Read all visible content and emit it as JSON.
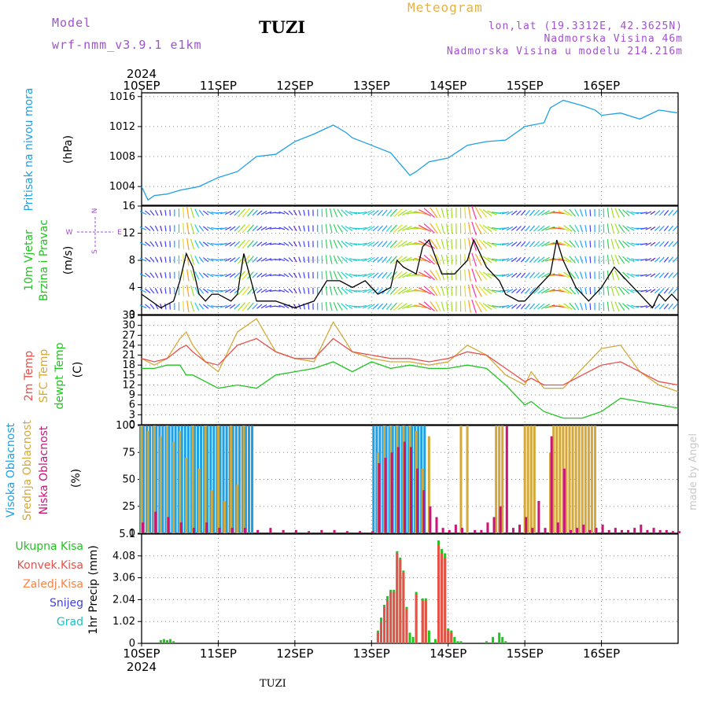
{
  "header": {
    "model_label": "Model",
    "model_name": "wrf-nmm_v3.9.1 e1km",
    "station": "TUZI",
    "meteogram": "Meteogram",
    "lonlat": "lon,lat (19.3312E, 42.3625N)",
    "elev": "Nadmorska Visina 46m",
    "elev_model": "Nadmorska Visina u modelu 214.216m",
    "footer_station": "TUZI",
    "credit": "made by Angel"
  },
  "colors": {
    "pressure": "#1ea0e6",
    "temp": "#e8504a",
    "sfc": "#d4a83a",
    "dewpt": "#22c422",
    "cloud_high": "#1ea0e6",
    "cloud_mid": "#d4a83a",
    "cloud_low": "#c8167a",
    "precip_total": "#22c422",
    "precip_conv": "#e8504a",
    "precip_frz": "#ff8040",
    "snow": "#4040e0",
    "hail": "#20c0c0",
    "title_purple": "#a050d0",
    "title_orange": "#e8b040"
  },
  "time_axis": {
    "year": "2024",
    "days": [
      "10SEP",
      "11SEP",
      "12SEP",
      "13SEP",
      "14SEP",
      "15SEP",
      "16SEP"
    ]
  },
  "panels": {
    "pressure": {
      "labels": [
        "Pritisak na nivou mora"
      ],
      "unit": "(hPa)",
      "ticks": [
        "1004",
        "1008",
        "1012",
        "1016"
      ]
    },
    "wind": {
      "labels": [
        "10m Vjetar",
        "Brzina i Pravac"
      ],
      "unit": "(m/s)",
      "ticks": [
        "0",
        "4",
        "8",
        "12",
        "16"
      ],
      "compass": {
        "n": "N",
        "s": "S",
        "e": "E",
        "w": "W"
      }
    },
    "temp": {
      "labels": [
        "2m Temp",
        "SFC Temp",
        "dewpt Temp"
      ],
      "unit": "(C)",
      "ticks": [
        "0",
        "3",
        "6",
        "9",
        "12",
        "15",
        "18",
        "21",
        "24",
        "27",
        "30",
        "33"
      ]
    },
    "cloud": {
      "labels": [
        "Visoka Oblacnost",
        "Srednja Oblacnost",
        "Niska Oblacnost"
      ],
      "unit": "(%)",
      "ticks": [
        "0",
        "25",
        "50",
        "75",
        "100"
      ]
    },
    "precip": {
      "legend": [
        "Ukupna Kisa",
        "Konvek.Kisa",
        "Zaledj.Kisa",
        "Snijeg",
        "Grad"
      ],
      "ylabel": "1hr Precip (mm)",
      "ticks": [
        "0",
        "1.02",
        "2.04",
        "3.06",
        "4.08",
        "5.1"
      ]
    }
  },
  "chart_data": [
    {
      "type": "line",
      "title": "Pritisak na nivou mora",
      "ylabel": "(hPa)",
      "x_unit": "hours since 10SEP 00",
      "ylim": [
        1001.5,
        1016.5
      ],
      "series": [
        {
          "name": "Pritisak na nivou mora",
          "x": [
            0,
            2,
            4,
            8,
            12,
            18,
            24,
            30,
            36,
            42,
            48,
            54,
            60,
            64,
            66,
            72,
            78,
            84,
            86,
            90,
            96,
            102,
            108,
            114,
            120,
            126,
            128,
            132,
            138,
            142,
            144,
            150,
            156,
            162,
            168
          ],
          "y": [
            1004.0,
            1002.2,
            1002.8,
            1003.0,
            1003.5,
            1004.0,
            1005.2,
            1006.0,
            1008.0,
            1008.3,
            1010.0,
            1011.0,
            1012.2,
            1011.2,
            1010.5,
            1009.5,
            1008.5,
            1005.5,
            1006.0,
            1007.3,
            1007.8,
            1009.5,
            1010.0,
            1010.2,
            1012.0,
            1012.5,
            1014.5,
            1015.5,
            1014.8,
            1014.2,
            1013.5,
            1013.8,
            1013.0,
            1014.2,
            1013.8
          ]
        }
      ]
    },
    {
      "type": "line",
      "title": "10m Vjetar Brzina i Pravac",
      "ylabel": "(m/s)",
      "x_unit": "hours since 10SEP 00",
      "ylim": [
        0,
        16
      ],
      "series": [
        {
          "name": "Brzina",
          "x": [
            0,
            6,
            10,
            12,
            14,
            16,
            18,
            20,
            22,
            24,
            28,
            30,
            32,
            36,
            42,
            48,
            54,
            58,
            62,
            66,
            70,
            72,
            74,
            78,
            80,
            82,
            86,
            88,
            90,
            94,
            98,
            102,
            104,
            106,
            108,
            110,
            112,
            114,
            118,
            120,
            122,
            124,
            126,
            128,
            130,
            132,
            134,
            136,
            138,
            140,
            142,
            144,
            148,
            152,
            156,
            160,
            162,
            164,
            166,
            168
          ],
          "y": [
            3,
            1,
            2,
            5,
            9,
            7,
            3,
            2,
            3,
            3,
            2,
            3,
            9,
            2,
            2,
            1,
            2,
            5,
            5,
            4,
            5,
            4,
            3,
            4,
            8,
            7,
            6,
            10,
            11,
            6,
            6,
            8,
            11,
            9,
            7,
            6,
            5,
            3,
            2,
            2,
            3,
            4,
            5,
            6,
            11,
            8,
            6,
            4,
            3,
            2,
            3,
            4,
            7,
            5,
            3,
            1,
            3,
            2,
            3,
            2
          ]
        }
      ]
    },
    {
      "type": "line",
      "title": "2m Temp / SFC Temp / dewpt Temp",
      "ylabel": "(C)",
      "x_unit": "hours since 10SEP 00",
      "ylim": [
        0,
        33
      ],
      "series": [
        {
          "name": "2m Temp",
          "x": [
            0,
            4,
            8,
            12,
            14,
            16,
            20,
            24,
            30,
            36,
            42,
            48,
            54,
            60,
            66,
            72,
            78,
            84,
            90,
            96,
            102,
            108,
            114,
            120,
            122,
            126,
            132,
            138,
            144,
            150,
            156,
            162,
            168
          ],
          "y": [
            20,
            19,
            20,
            23,
            24,
            22,
            19,
            18,
            24,
            26,
            22,
            20,
            20,
            26,
            22,
            21,
            20,
            20,
            19,
            20,
            22,
            21,
            17,
            13,
            14,
            12,
            12,
            15,
            18,
            19,
            16,
            13,
            12
          ]
        },
        {
          "name": "SFC Temp",
          "x": [
            0,
            4,
            8,
            12,
            14,
            16,
            20,
            24,
            30,
            36,
            42,
            48,
            54,
            60,
            66,
            72,
            78,
            84,
            90,
            96,
            102,
            108,
            114,
            120,
            122,
            126,
            132,
            138,
            144,
            150,
            156,
            162,
            168
          ],
          "y": [
            20,
            18,
            20,
            26,
            28,
            24,
            19,
            16,
            28,
            32,
            22,
            20,
            19,
            31,
            22,
            20,
            19,
            19,
            18,
            19,
            24,
            21,
            15,
            12,
            16,
            11,
            11,
            17,
            23,
            24,
            16,
            12,
            10
          ]
        },
        {
          "name": "dewpt Temp",
          "x": [
            0,
            4,
            8,
            12,
            14,
            16,
            20,
            24,
            30,
            36,
            42,
            48,
            54,
            60,
            66,
            72,
            78,
            84,
            90,
            96,
            102,
            108,
            114,
            120,
            122,
            126,
            132,
            138,
            144,
            150,
            156,
            162,
            168
          ],
          "y": [
            17,
            17,
            18,
            18,
            15,
            15,
            13,
            11,
            12,
            11,
            15,
            16,
            17,
            19,
            16,
            19,
            17,
            18,
            17,
            17,
            18,
            17,
            12,
            6,
            7,
            4,
            2,
            2,
            4,
            8,
            7,
            6,
            5
          ]
        }
      ]
    },
    {
      "type": "bar",
      "title": "Oblacnost",
      "ylabel": "(%)",
      "x_unit": "hours since 10SEP 00",
      "ylim": [
        0,
        100
      ],
      "series": [
        {
          "name": "Visoka Oblacnost",
          "x": [
            0,
            1,
            2,
            3,
            4,
            5,
            6,
            7,
            8,
            9,
            10,
            11,
            12,
            13,
            14,
            15,
            16,
            17,
            18,
            19,
            20,
            21,
            22,
            23,
            24,
            25,
            26,
            27,
            28,
            29,
            30,
            31,
            32,
            33,
            34,
            35,
            73,
            74,
            75,
            76,
            77,
            78,
            79,
            80,
            81,
            82,
            83,
            84,
            85,
            86,
            87,
            88,
            89
          ],
          "y": [
            100,
            100,
            100,
            100,
            100,
            100,
            100,
            100,
            100,
            100,
            100,
            100,
            100,
            100,
            100,
            100,
            100,
            100,
            100,
            100,
            100,
            100,
            100,
            100,
            100,
            100,
            100,
            100,
            100,
            100,
            100,
            100,
            100,
            100,
            100,
            100,
            100,
            100,
            100,
            100,
            100,
            100,
            100,
            100,
            100,
            100,
            100,
            100,
            100,
            100,
            100,
            100,
            100
          ]
        },
        {
          "name": "Srednja Oblacnost",
          "x": [
            0,
            2,
            4,
            6,
            8,
            10,
            12,
            14,
            16,
            18,
            20,
            22,
            24,
            26,
            28,
            30,
            32,
            74,
            76,
            78,
            80,
            82,
            84,
            86,
            88,
            90,
            100,
            102,
            111,
            112,
            113,
            120,
            121,
            122,
            123,
            128,
            129,
            130,
            131,
            132,
            133,
            134,
            135,
            136,
            137,
            138,
            139,
            140,
            141,
            142
          ],
          "y": [
            100,
            95,
            100,
            90,
            100,
            85,
            95,
            70,
            100,
            60,
            100,
            40,
            100,
            30,
            100,
            45,
            100,
            75,
            100,
            100,
            100,
            100,
            100,
            95,
            60,
            90,
            100,
            100,
            100,
            100,
            100,
            100,
            100,
            100,
            100,
            75,
            100,
            100,
            100,
            100,
            100,
            100,
            100,
            100,
            100,
            100,
            100,
            100,
            100,
            100
          ]
        },
        {
          "name": "Niska Oblacnost",
          "x": [
            0,
            4,
            8,
            12,
            16,
            20,
            24,
            28,
            32,
            36,
            40,
            44,
            48,
            52,
            56,
            60,
            64,
            68,
            72,
            74,
            76,
            78,
            80,
            82,
            84,
            86,
            88,
            90,
            92,
            94,
            96,
            98,
            100,
            104,
            106,
            108,
            110,
            112,
            114,
            116,
            118,
            120,
            122,
            124,
            126,
            128,
            130,
            132,
            134,
            136,
            138,
            140,
            142,
            144,
            146,
            148,
            150,
            152,
            154,
            156,
            158,
            160,
            162,
            164,
            166,
            168
          ],
          "y": [
            10,
            20,
            15,
            10,
            5,
            10,
            5,
            5,
            5,
            3,
            5,
            3,
            3,
            2,
            3,
            3,
            2,
            2,
            2,
            65,
            70,
            75,
            80,
            85,
            80,
            60,
            40,
            25,
            15,
            5,
            3,
            8,
            5,
            3,
            3,
            10,
            15,
            25,
            100,
            5,
            8,
            15,
            5,
            30,
            5,
            90,
            10,
            60,
            3,
            5,
            8,
            3,
            5,
            8,
            3,
            5,
            3,
            3,
            5,
            8,
            3,
            5,
            3,
            3,
            2,
            2
          ]
        }
      ]
    },
    {
      "type": "bar",
      "title": "1hr Precip",
      "ylabel": "1hr Precip (mm)",
      "x_unit": "hours since 10SEP 00",
      "ylim": [
        0,
        5.1
      ],
      "series": [
        {
          "name": "Ukupna Kisa",
          "x": [
            6,
            7,
            8,
            9,
            10,
            74,
            75,
            76,
            77,
            78,
            79,
            80,
            81,
            82,
            83,
            84,
            85,
            86,
            88,
            89,
            90,
            92,
            93,
            94,
            95,
            96,
            97,
            98,
            99,
            100,
            108,
            110,
            112,
            113,
            114
          ],
          "y": [
            0.15,
            0.2,
            0.15,
            0.2,
            0.1,
            0.6,
            1.2,
            1.8,
            2.2,
            2.5,
            2.5,
            4.3,
            4.0,
            3.4,
            1.7,
            0.5,
            0.3,
            2.4,
            2.1,
            2.1,
            0.6,
            0.2,
            4.8,
            4.4,
            4.2,
            0.7,
            0.6,
            0.3,
            0.1,
            0.1,
            0.1,
            0.3,
            0.5,
            0.3,
            0.1
          ]
        },
        {
          "name": "Konvek.Kisa",
          "x": [
            74,
            75,
            76,
            77,
            78,
            79,
            80,
            81,
            82,
            83,
            86,
            88,
            89,
            93,
            94,
            95,
            96,
            97
          ],
          "y": [
            0.5,
            1.0,
            1.7,
            2.0,
            2.4,
            2.4,
            4.2,
            3.9,
            3.3,
            1.6,
            2.3,
            2.0,
            2.0,
            4.6,
            4.2,
            4.0,
            0.6,
            0.5
          ]
        },
        {
          "name": "Zaledj.Kisa",
          "x": [],
          "y": []
        },
        {
          "name": "Snijeg",
          "x": [],
          "y": []
        },
        {
          "name": "Grad",
          "x": [],
          "y": []
        }
      ]
    }
  ]
}
